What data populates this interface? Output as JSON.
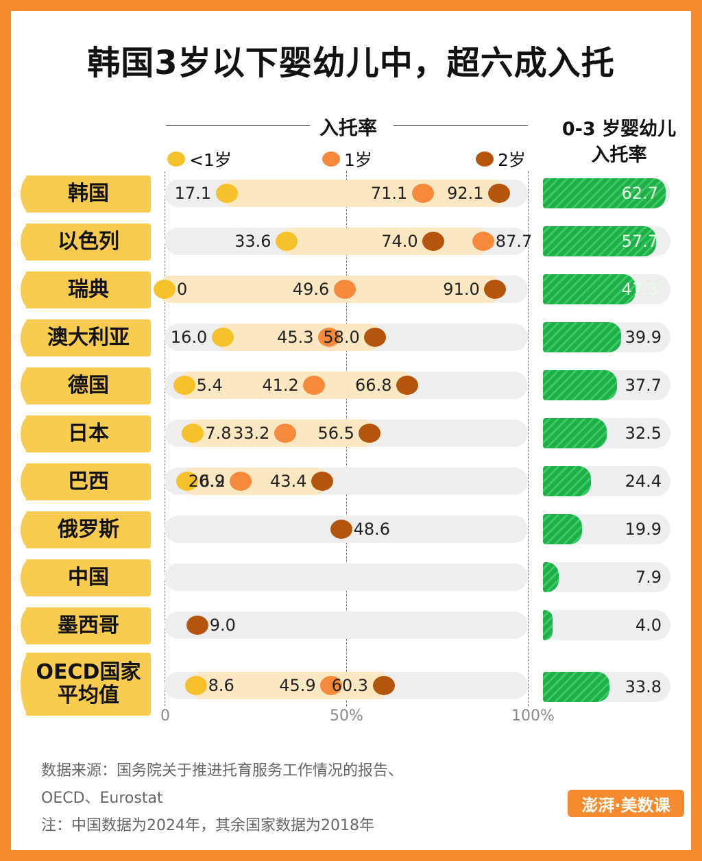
{
  "title": "韩国3岁以下婴幼儿中，超六成入托",
  "left_header": "入托率",
  "right_header_line1": "0-3 岁婴幼儿",
  "right_header_line2": "入托率",
  "legend": [
    {
      "label": "<1岁",
      "color": "#F6C12B"
    },
    {
      "label": "1岁",
      "color": "#F7893B"
    },
    {
      "label": "2岁",
      "color": "#B5540D"
    }
  ],
  "chart_data": [
    {
      "type": "dot",
      "title": "入托率",
      "xlim": [
        0,
        100
      ],
      "ticks": [
        "0",
        "50%",
        "100%"
      ],
      "categories": [
        "韩国",
        "以色列",
        "瑞典",
        "澳大利亚",
        "德国",
        "日本",
        "巴西",
        "俄罗斯",
        "中国",
        "墨西哥",
        "OECD国家平均值"
      ],
      "series": [
        {
          "name": "<1岁",
          "values": [
            17.1,
            33.6,
            0,
            16.0,
            5.4,
            7.8,
            6.2,
            null,
            null,
            null,
            8.6
          ]
        },
        {
          "name": "1岁",
          "values": [
            71.1,
            87.7,
            49.6,
            45.3,
            41.2,
            33.2,
            20.9,
            null,
            null,
            null,
            45.9
          ]
        },
        {
          "name": "2岁",
          "values": [
            92.1,
            74.0,
            91.0,
            58.0,
            66.8,
            56.5,
            43.4,
            48.6,
            null,
            9.0,
            60.3
          ]
        }
      ],
      "labels": [
        [
          "17.1",
          "71.1",
          "92.1"
        ],
        [
          "33.6",
          "87.7",
          "74.0"
        ],
        [
          "0",
          "49.6",
          "91.0"
        ],
        [
          "16.0",
          "45.3",
          "58.0"
        ],
        [
          "5.4",
          "41.2",
          "66.8"
        ],
        [
          "7.8",
          "33.2",
          "56.5"
        ],
        [
          "6.2",
          "20.9",
          "43.4"
        ],
        [
          null,
          null,
          "48.6"
        ],
        [
          null,
          null,
          null
        ],
        [
          null,
          null,
          "9.0"
        ],
        [
          "8.6",
          "45.9",
          "60.3"
        ]
      ],
      "grid": true,
      "legend_position": "top"
    },
    {
      "type": "bar",
      "title": "0-3 岁婴幼儿入托率",
      "categories": [
        "韩国",
        "以色列",
        "瑞典",
        "澳大利亚",
        "德国",
        "日本",
        "巴西",
        "俄罗斯",
        "中国",
        "墨西哥",
        "OECD国家平均值"
      ],
      "values": [
        62.7,
        57.7,
        47.3,
        39.9,
        37.7,
        32.5,
        24.4,
        19.9,
        7.9,
        4.0,
        33.8
      ],
      "labels": [
        "62.7",
        "57.7",
        "47.3",
        "39.9",
        "37.7",
        "32.5",
        "24.4",
        "19.9",
        "7.9",
        "4.0",
        "33.8"
      ],
      "xlim": [
        0,
        65
      ],
      "color": "#1FAE4A"
    }
  ],
  "countries": [
    {
      "name": "韩国"
    },
    {
      "name": "以色列"
    },
    {
      "name": "瑞典"
    },
    {
      "name": "澳大利亚"
    },
    {
      "name": "德国"
    },
    {
      "name": "日本"
    },
    {
      "name": "巴西"
    },
    {
      "name": "俄罗斯"
    },
    {
      "name": "中国"
    },
    {
      "name": "墨西哥"
    },
    {
      "name": "OECD国家\n平均值"
    }
  ],
  "footer": {
    "source_line1": "数据来源：国务院关于推进托育服务工作情况的报告、",
    "source_line2": "OECD、Eurostat",
    "note": "注：中国数据为2024年，其余国家数据为2018年"
  },
  "logo_text": "澎湃·美数课"
}
